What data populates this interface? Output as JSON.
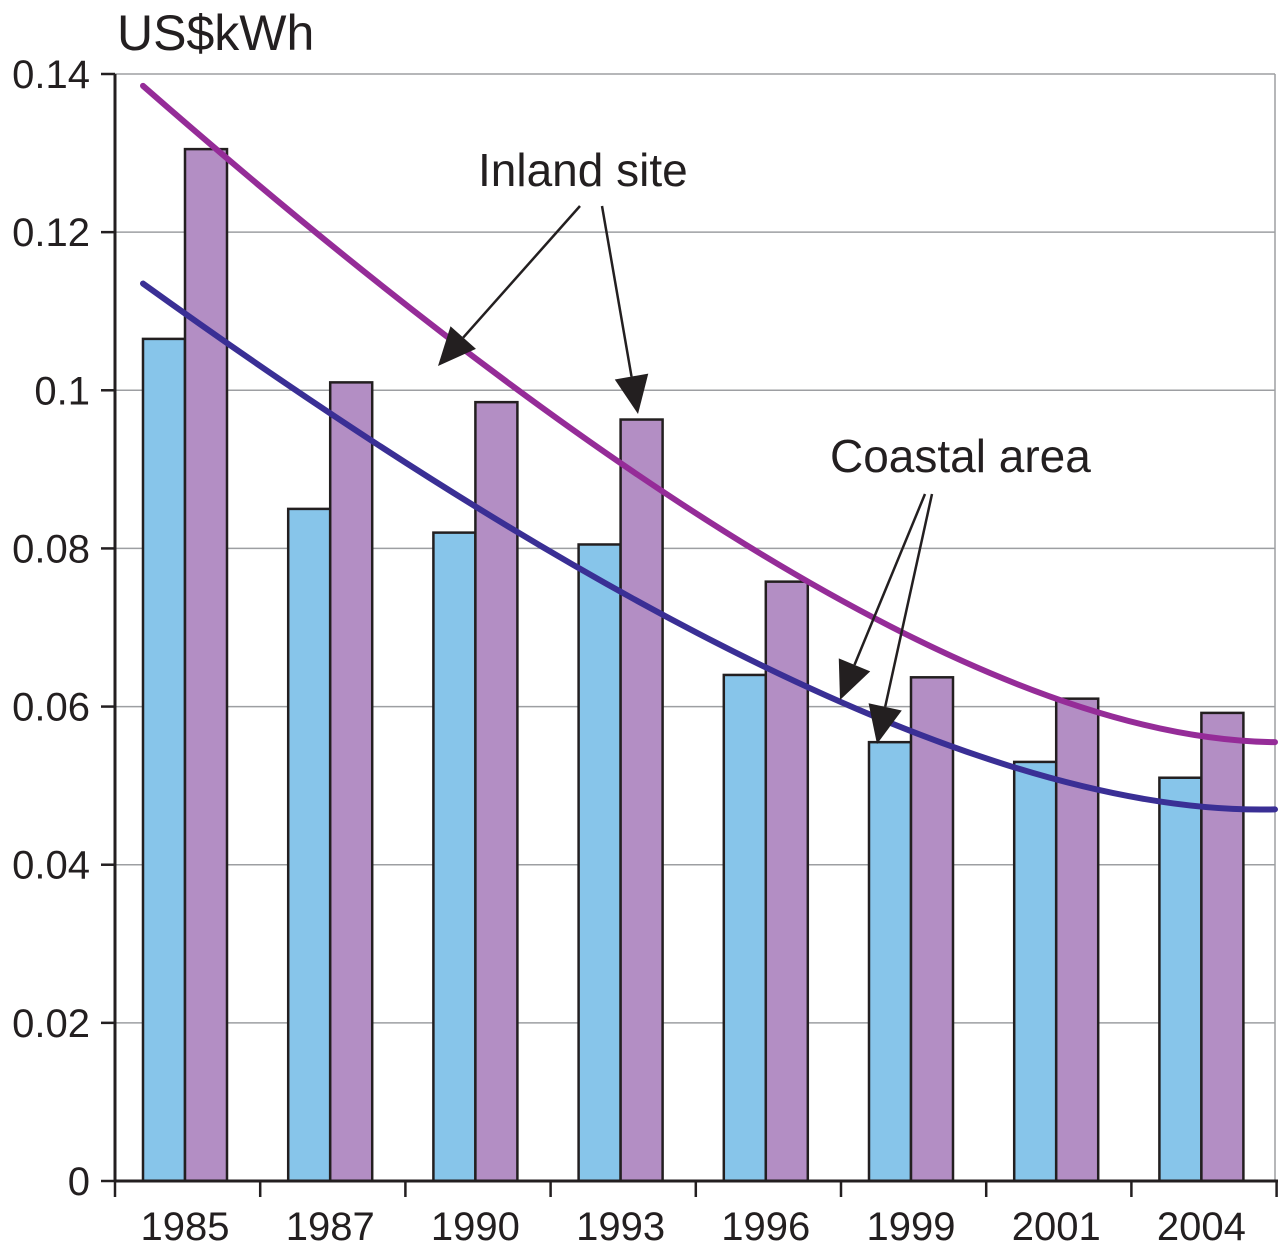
{
  "chart_data": {
    "type": "bar",
    "title": "",
    "xlabel": "",
    "ylabel": "US$kWh",
    "categories": [
      "1985",
      "1987",
      "1990",
      "1993",
      "1996",
      "1999",
      "2001",
      "2004"
    ],
    "series": [
      {
        "name": "Coastal area",
        "color": "#87c5ea",
        "values": [
          0.1065,
          0.085,
          0.082,
          0.0805,
          0.064,
          0.0555,
          0.053,
          0.051
        ]
      },
      {
        "name": "Inland site",
        "color": "#b38ec4",
        "values": [
          0.1305,
          0.101,
          0.0985,
          0.0963,
          0.0758,
          0.0637,
          0.061,
          0.0592
        ]
      }
    ],
    "trend_lines": [
      {
        "series": "Inland site",
        "color": "#952c98",
        "points": [
          [
            1985,
            0.1385
          ],
          [
            1996,
            0.0765
          ],
          [
            2004,
            0.0555
          ]
        ]
      },
      {
        "series": "Coastal area",
        "color": "#3a2f95",
        "points": [
          [
            1985,
            0.1135
          ],
          [
            1996,
            0.063
          ],
          [
            2004,
            0.047
          ]
        ]
      }
    ],
    "ylim": [
      0,
      0.14
    ],
    "yticks": [
      "0",
      "0.02",
      "0.04",
      "0.06",
      "0.08",
      "0.1",
      "0.12",
      "0.14"
    ],
    "grid": true,
    "annotations": [
      {
        "text": "Inland site"
      },
      {
        "text": "Coastal area"
      }
    ]
  }
}
